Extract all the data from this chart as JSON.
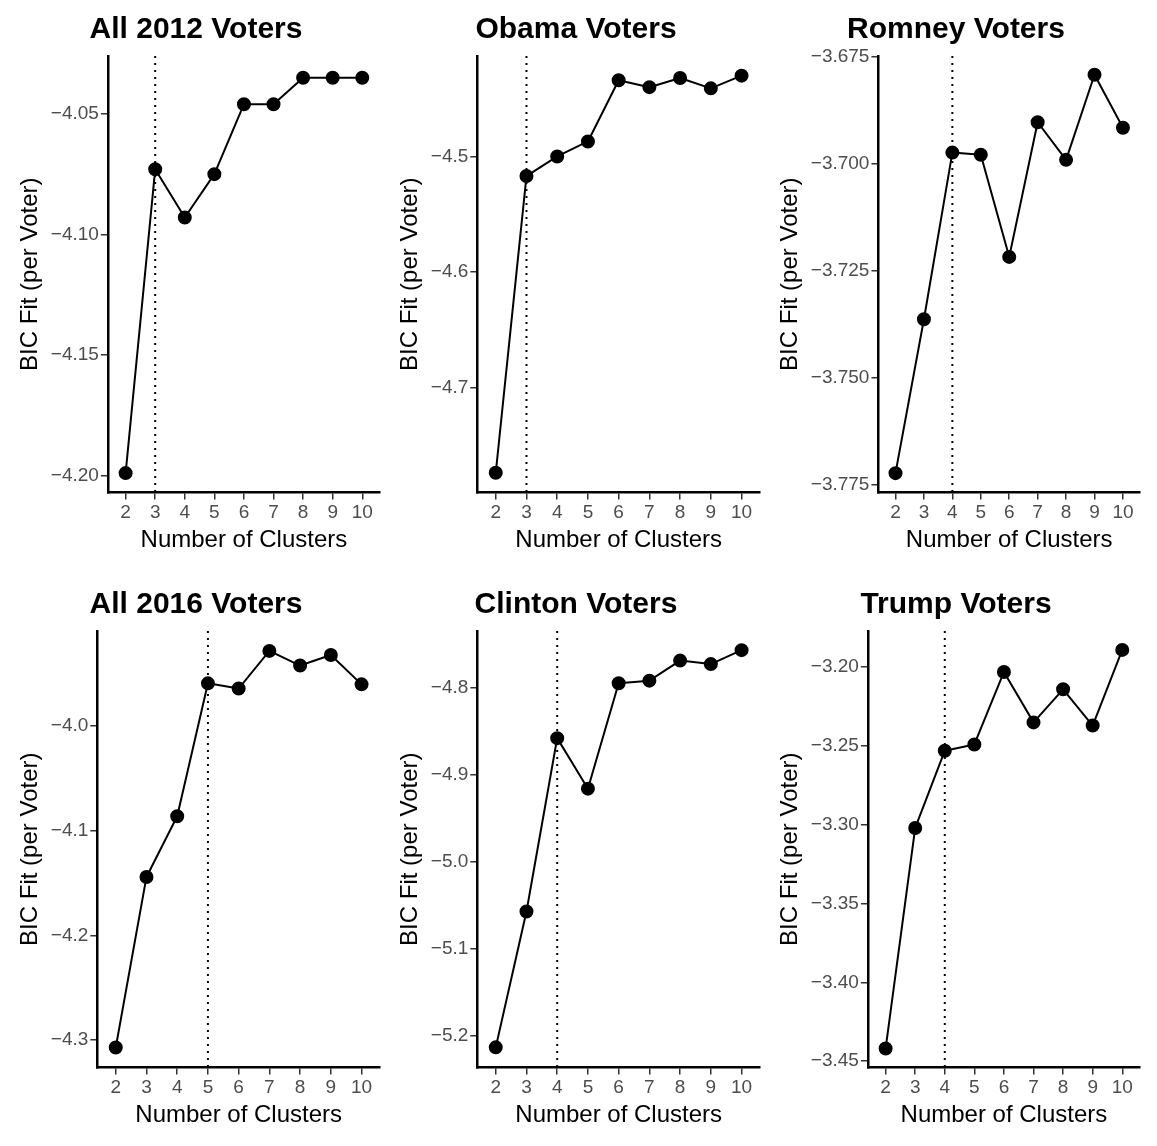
{
  "chart_data": [
    {
      "type": "line",
      "title": "All 2012 Voters",
      "xlabel": "Number of Clusters",
      "ylabel": "BIC Fit (per Voter)",
      "x": [
        2,
        3,
        4,
        5,
        6,
        7,
        8,
        9,
        10
      ],
      "series": [
        {
          "color": "#000000",
          "values": [
            -4.199,
            -4.073,
            -4.093,
            -4.075,
            -4.046,
            -4.046,
            -4.035,
            -4.035,
            -4.035
          ]
        }
      ],
      "xlim": [
        1.4,
        10.6
      ],
      "xticks": [
        2,
        3,
        4,
        5,
        6,
        7,
        8,
        9,
        10
      ],
      "ylim": [
        -4.207,
        -4.026
      ],
      "yticks": [
        {
          "value": -4.2,
          "label": "−4.20"
        },
        {
          "value": -4.15,
          "label": "−4.15"
        },
        {
          "value": -4.1,
          "label": "−4.10"
        },
        {
          "value": -4.05,
          "label": "−4.05"
        }
      ],
      "ref_lines": [
        {
          "axis": "x",
          "value": 3,
          "color": "#000000",
          "line_style": "dotted"
        }
      ],
      "marker": "circle",
      "line_style": "solid",
      "grid": false,
      "legend": false
    },
    {
      "type": "line",
      "title": "Obama Voters",
      "xlabel": "Number of Clusters",
      "ylabel": "BIC Fit (per Voter)",
      "x": [
        2,
        3,
        4,
        5,
        6,
        7,
        8,
        9,
        10
      ],
      "series": [
        {
          "color": "#000000",
          "values": [
            -4.774,
            -4.517,
            -4.5,
            -4.487,
            -4.434,
            -4.44,
            -4.432,
            -4.441,
            -4.43
          ]
        }
      ],
      "xlim": [
        1.4,
        10.6
      ],
      "xticks": [
        2,
        3,
        4,
        5,
        6,
        7,
        8,
        9,
        10
      ],
      "ylim": [
        -4.791,
        -4.413
      ],
      "yticks": [
        {
          "value": -4.7,
          "label": "−4.7"
        },
        {
          "value": -4.6,
          "label": "−4.6"
        },
        {
          "value": -4.5,
          "label": "−4.5"
        }
      ],
      "ref_lines": [
        {
          "axis": "x",
          "value": 3,
          "color": "#000000",
          "line_style": "dotted"
        }
      ],
      "marker": "circle",
      "line_style": "solid",
      "grid": false,
      "legend": false
    },
    {
      "type": "line",
      "title": "Romney Voters",
      "xlabel": "Number of Clusters",
      "ylabel": "BIC Fit (per Voter)",
      "x": [
        2,
        3,
        4,
        5,
        6,
        7,
        8,
        9,
        10
      ],
      "series": [
        {
          "color": "#000000",
          "values": [
            -3.7724,
            -3.7364,
            -3.6974,
            -3.6979,
            -3.7218,
            -3.6903,
            -3.6991,
            -3.6792,
            -3.6916
          ]
        }
      ],
      "xlim": [
        1.4,
        10.6
      ],
      "xticks": [
        2,
        3,
        4,
        5,
        6,
        7,
        8,
        9,
        10
      ],
      "ylim": [
        -3.7769,
        -3.6748
      ],
      "yticks": [
        {
          "value": -3.775,
          "label": "−3.775"
        },
        {
          "value": -3.75,
          "label": "−3.750"
        },
        {
          "value": -3.725,
          "label": "−3.725"
        },
        {
          "value": -3.7,
          "label": "−3.700"
        },
        {
          "value": -3.675,
          "label": "−3.675"
        }
      ],
      "ref_lines": [
        {
          "axis": "x",
          "value": 4,
          "color": "#000000",
          "line_style": "dotted"
        }
      ],
      "marker": "circle",
      "line_style": "solid",
      "grid": false,
      "legend": false
    },
    {
      "type": "line",
      "title": "All 2016 Voters",
      "xlabel": "Number of Clusters",
      "ylabel": "BIC Fit (per Voter)",
      "x": [
        2,
        3,
        4,
        5,
        6,
        7,
        8,
        9,
        10
      ],
      "series": [
        {
          "color": "#000000",
          "values": [
            -4.307,
            -4.144,
            -4.086,
            -3.959,
            -3.964,
            -3.928,
            -3.942,
            -3.932,
            -3.96
          ]
        }
      ],
      "xlim": [
        1.4,
        10.6
      ],
      "xticks": [
        2,
        3,
        4,
        5,
        6,
        7,
        8,
        9,
        10
      ],
      "ylim": [
        -4.326,
        -3.909
      ],
      "yticks": [
        {
          "value": -4.3,
          "label": "−4.3"
        },
        {
          "value": -4.2,
          "label": "−4.2"
        },
        {
          "value": -4.1,
          "label": "−4.1"
        },
        {
          "value": -4.0,
          "label": "−4.0"
        }
      ],
      "ref_lines": [
        {
          "axis": "x",
          "value": 5,
          "color": "#000000",
          "line_style": "dotted"
        }
      ],
      "marker": "circle",
      "line_style": "solid",
      "grid": false,
      "legend": false
    },
    {
      "type": "line",
      "title": "Clinton Voters",
      "xlabel": "Number of Clusters",
      "ylabel": "BIC Fit (per Voter)",
      "x": [
        2,
        3,
        4,
        5,
        6,
        7,
        8,
        9,
        10
      ],
      "series": [
        {
          "color": "#000000",
          "values": [
            -5.213,
            -5.057,
            -4.858,
            -4.916,
            -4.795,
            -4.792,
            -4.769,
            -4.773,
            -4.757
          ]
        }
      ],
      "xlim": [
        1.4,
        10.6
      ],
      "xticks": [
        2,
        3,
        4,
        5,
        6,
        7,
        8,
        9,
        10
      ],
      "ylim": [
        -5.236,
        -4.735
      ],
      "yticks": [
        {
          "value": -5.2,
          "label": "−5.2"
        },
        {
          "value": -5.1,
          "label": "−5.1"
        },
        {
          "value": -5.0,
          "label": "−5.0"
        },
        {
          "value": -4.9,
          "label": "−4.9"
        },
        {
          "value": -4.8,
          "label": "−4.8"
        }
      ],
      "ref_lines": [
        {
          "axis": "x",
          "value": 4,
          "color": "#000000",
          "line_style": "dotted"
        }
      ],
      "marker": "circle",
      "line_style": "solid",
      "grid": false,
      "legend": false
    },
    {
      "type": "line",
      "title": "Trump Voters",
      "xlabel": "Number of Clusters",
      "ylabel": "BIC Fit (per Voter)",
      "x": [
        2,
        3,
        4,
        5,
        6,
        7,
        8,
        9,
        10
      ],
      "series": [
        {
          "color": "#000000",
          "values": [
            -3.442,
            -3.302,
            -3.253,
            -3.249,
            -3.203,
            -3.235,
            -3.214,
            -3.237,
            -3.189
          ]
        }
      ],
      "xlim": [
        1.4,
        10.6
      ],
      "xticks": [
        2,
        3,
        4,
        5,
        6,
        7,
        8,
        9,
        10
      ],
      "ylim": [
        -3.454,
        -3.177
      ],
      "yticks": [
        {
          "value": -3.45,
          "label": "−3.45"
        },
        {
          "value": -3.4,
          "label": "−3.40"
        },
        {
          "value": -3.35,
          "label": "−3.35"
        },
        {
          "value": -3.3,
          "label": "−3.30"
        },
        {
          "value": -3.25,
          "label": "−3.25"
        },
        {
          "value": -3.2,
          "label": "−3.20"
        }
      ],
      "ref_lines": [
        {
          "axis": "x",
          "value": 4,
          "color": "#000000",
          "line_style": "dotted"
        }
      ],
      "marker": "circle",
      "line_style": "solid",
      "grid": false,
      "legend": false
    }
  ]
}
